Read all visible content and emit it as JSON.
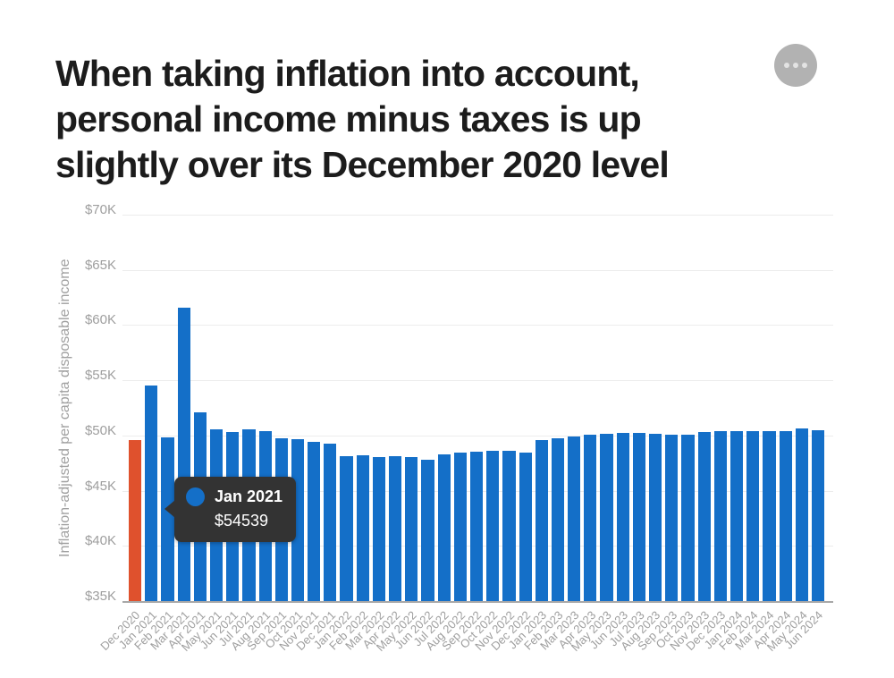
{
  "header": {
    "title_lines": [
      "When taking inflation into account,",
      "personal income minus taxes is up",
      "slightly over its December 2020 level"
    ]
  },
  "menu_button": {
    "icon": "ellipsis-icon"
  },
  "chart_data": {
    "type": "bar",
    "title": "When taking inflation into account, personal income minus taxes is up slightly over its December 2020 level",
    "ylabel": "Inflation-adjusted per capita disposable income",
    "xlabel": "",
    "ylim": [
      35000,
      70000
    ],
    "grid": "horizontal",
    "legend": "none",
    "y_ticks": [
      {
        "label": "$35K",
        "value": 35000
      },
      {
        "label": "$40K",
        "value": 40000
      },
      {
        "label": "$45K",
        "value": 45000
      },
      {
        "label": "$50K",
        "value": 50000
      },
      {
        "label": "$55K",
        "value": 55000
      },
      {
        "label": "$60K",
        "value": 60000
      },
      {
        "label": "$65K",
        "value": 65000
      },
      {
        "label": "$70K",
        "value": 70000
      }
    ],
    "categories": [
      "Dec 2020",
      "Jan 2021",
      "Feb 2021",
      "Mar 2021",
      "Apr 2021",
      "May 2021",
      "Jun 2021",
      "Jul 2021",
      "Aug 2021",
      "Sep 2021",
      "Oct 2021",
      "Nov 2021",
      "Dec 2021",
      "Jan 2022",
      "Feb 2022",
      "Mar 2022",
      "Apr 2022",
      "May 2022",
      "Jun 2022",
      "Jul 2022",
      "Aug 2022",
      "Sep 2022",
      "Oct 2022",
      "Nov 2022",
      "Dec 2022",
      "Jan 2023",
      "Feb 2023",
      "Mar 2023",
      "Apr 2023",
      "May 2023",
      "Jun 2023",
      "Jul 2023",
      "Aug 2023",
      "Sep 2023",
      "Oct 2023",
      "Nov 2023",
      "Dec 2023",
      "Jan 2024",
      "Feb 2024",
      "Mar 2024",
      "Apr 2024",
      "May 2024",
      "Jun 2024"
    ],
    "values": [
      49560,
      54539,
      49810,
      61610,
      52090,
      50520,
      50320,
      50590,
      50430,
      49720,
      49700,
      49430,
      49230,
      48150,
      48190,
      48060,
      48140,
      48020,
      47830,
      48280,
      48420,
      48510,
      48620,
      48620,
      48490,
      49600,
      49720,
      49900,
      50050,
      50120,
      50260,
      50270,
      50140,
      50050,
      50070,
      50320,
      50400,
      50410,
      50400,
      50410,
      50360,
      50630,
      50500
    ],
    "bar_color": "#146FC8",
    "highlight": {
      "index": 0,
      "color": "#DF512D"
    },
    "tooltip": {
      "label": "Jan 2021",
      "value": "$54539",
      "target_category": "Jan 2021"
    }
  }
}
